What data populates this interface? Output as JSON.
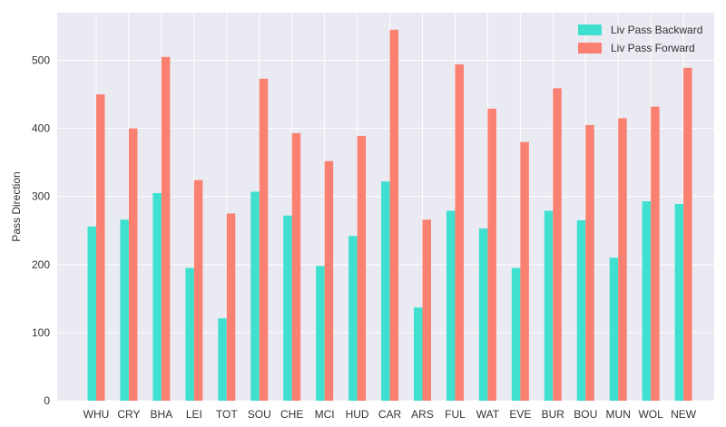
{
  "chart_data": {
    "type": "bar",
    "title": "",
    "xlabel": "",
    "ylabel": "Pass Direction",
    "categories": [
      "WHU",
      "CRY",
      "BHA",
      "LEI",
      "TOT",
      "SOU",
      "CHE",
      "MCI",
      "HUD",
      "CAR",
      "ARS",
      "FUL",
      "WAT",
      "EVE",
      "BUR",
      "BOU",
      "MUN",
      "WOL",
      "NEW"
    ],
    "series": [
      {
        "name": "Liv Pass Backward",
        "color": "#40e0d0",
        "values": [
          256,
          266,
          305,
          195,
          121,
          307,
          272,
          198,
          242,
          322,
          137,
          279,
          253,
          195,
          279,
          265,
          210,
          293,
          289
        ]
      },
      {
        "name": "Liv Pass Forward",
        "color": "#fa8072",
        "values": [
          450,
          400,
          505,
          324,
          275,
          473,
          393,
          352,
          389,
          545,
          266,
          494,
          429,
          380,
          459,
          405,
          415,
          432,
          489
        ]
      }
    ],
    "ylim": [
      0,
      570
    ],
    "yticks": [
      0,
      100,
      200,
      300,
      400,
      500
    ],
    "grid": true,
    "legend_position": "top-right",
    "background_color": "#eaeaf2",
    "grid_color": "#ffffff"
  }
}
